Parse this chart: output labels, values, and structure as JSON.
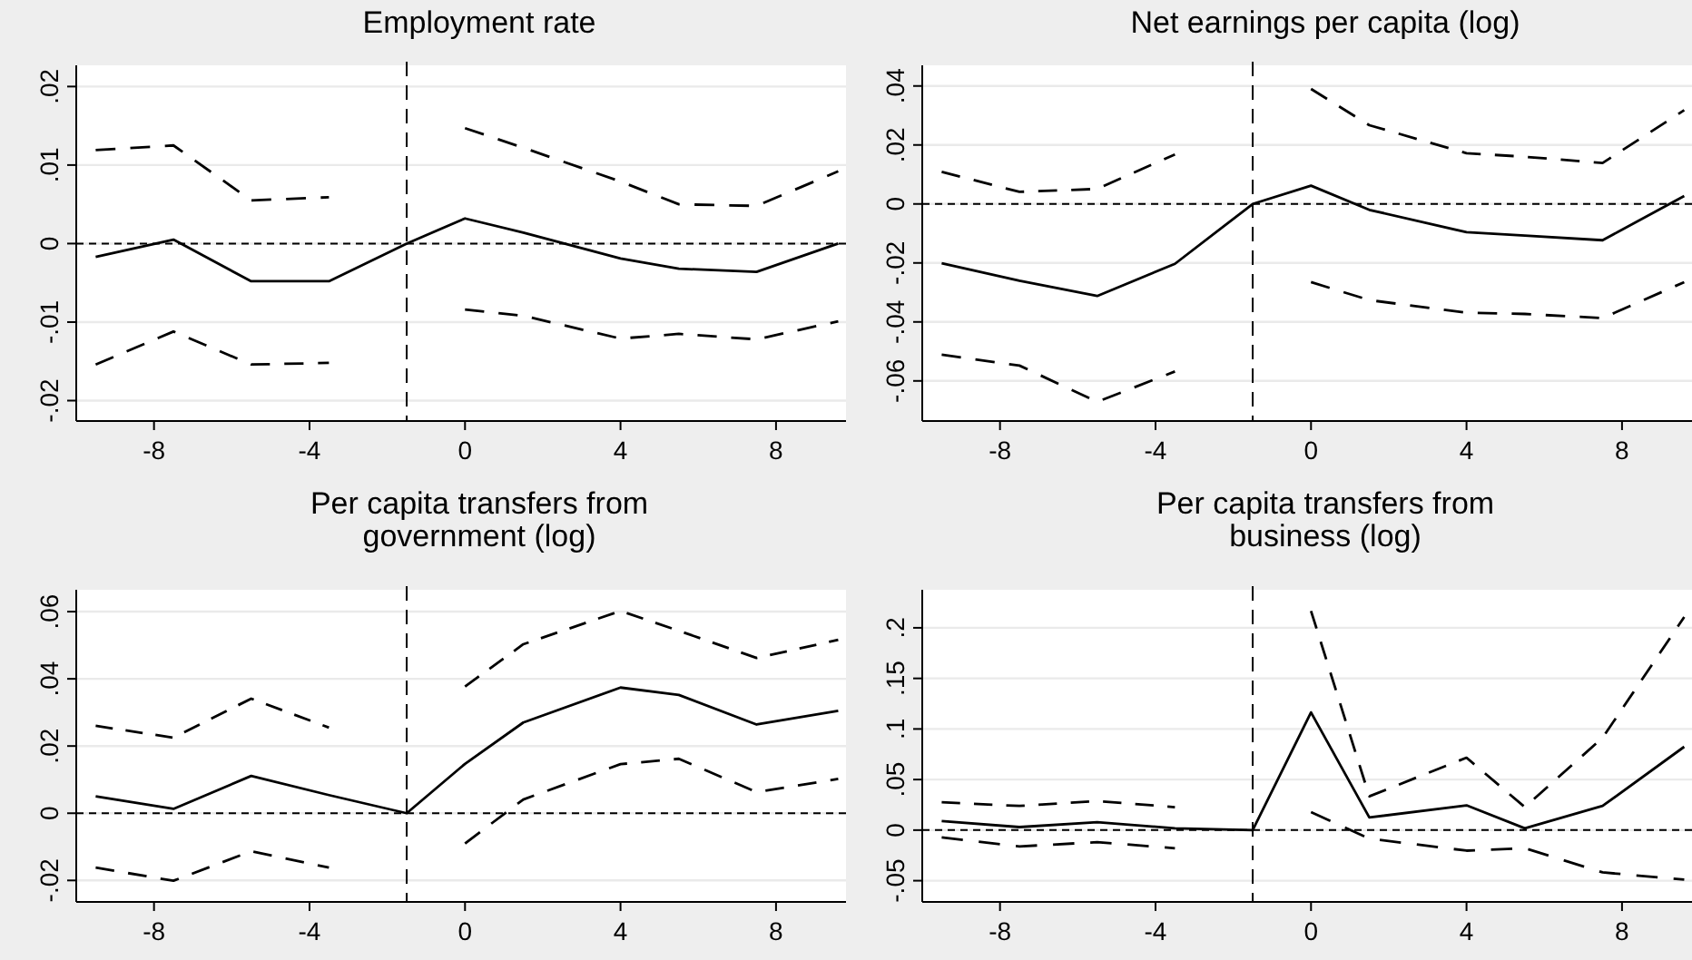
{
  "chart_data": [
    {
      "type": "line",
      "title": "Employment rate",
      "x": [
        -9.5,
        -7.5,
        -5.5,
        -3.5,
        -1.5,
        0,
        1.5,
        4,
        5.5,
        7.5,
        9.6
      ],
      "xlim": [
        -10,
        9.8
      ],
      "xticks": [
        -8,
        -4,
        0,
        4,
        8
      ],
      "ylim": [
        -0.0226,
        0.0227
      ],
      "yticks": [
        {
          "value": -0.02,
          "label": "-.02"
        },
        {
          "value": -0.01,
          "label": "-.01"
        },
        {
          "value": 0,
          "label": "0"
        },
        {
          "value": 0.01,
          "label": ".01"
        },
        {
          "value": 0.02,
          "label": ".02"
        }
      ],
      "grid": "y",
      "ref_lines": [
        {
          "axis": "x",
          "value": -1.5,
          "line_style": "dashed"
        },
        {
          "axis": "y",
          "value": 0,
          "line_style": "dashed"
        }
      ],
      "series": [
        {
          "color": "#000000",
          "line_style": "solid",
          "values": [
            -0.0017,
            0.0005,
            -0.0048,
            -0.0048,
            0,
            0.0032,
            0.0014,
            -0.0019,
            -0.0032,
            -0.0036,
            0
          ]
        },
        {
          "color": "#000000",
          "line_style": "dashed",
          "values": [
            0.0119,
            0.0125,
            0.0055,
            0.0059,
            null,
            0.0147,
            0.0122,
            0.0079,
            0.005,
            0.0048,
            0.0092
          ]
        },
        {
          "color": "#000000",
          "line_style": "dashed",
          "values": [
            -0.0154,
            -0.0112,
            -0.0154,
            -0.0152,
            null,
            -0.0084,
            -0.0092,
            -0.0121,
            -0.0115,
            -0.0122,
            -0.0099
          ]
        }
      ]
    },
    {
      "type": "line",
      "title": "Net earnings per capita (log)",
      "x": [
        -9.5,
        -7.5,
        -5.5,
        -3.5,
        -1.5,
        0,
        1.5,
        4,
        5.5,
        7.5,
        9.6
      ],
      "xlim": [
        -10,
        9.8
      ],
      "xticks": [
        -8,
        -4,
        0,
        4,
        8
      ],
      "ylim": [
        -0.0736,
        0.047
      ],
      "yticks": [
        {
          "value": -0.06,
          "label": "-.06"
        },
        {
          "value": -0.04,
          "label": "-.04"
        },
        {
          "value": -0.02,
          "label": "-.02"
        },
        {
          "value": 0,
          "label": "0"
        },
        {
          "value": 0.02,
          "label": ".02"
        },
        {
          "value": 0.04,
          "label": ".04"
        }
      ],
      "grid": "y",
      "ref_lines": [
        {
          "axis": "x",
          "value": -1.5,
          "line_style": "dashed"
        },
        {
          "axis": "y",
          "value": 0,
          "line_style": "dashed"
        }
      ],
      "series": [
        {
          "color": "#000000",
          "line_style": "solid",
          "values": [
            -0.0201,
            -0.026,
            -0.0312,
            -0.0203,
            0,
            0.0062,
            -0.002,
            -0.0096,
            -0.0107,
            -0.0123,
            0.0027
          ]
        },
        {
          "color": "#000000",
          "line_style": "dashed",
          "values": [
            0.0109,
            0.0041,
            0.0051,
            0.0168,
            null,
            0.039,
            0.0267,
            0.0172,
            0.016,
            0.0139,
            0.0318
          ]
        },
        {
          "color": "#000000",
          "line_style": "dashed",
          "values": [
            -0.0511,
            -0.0548,
            -0.0671,
            -0.0568,
            null,
            -0.0265,
            -0.0326,
            -0.0369,
            -0.0373,
            -0.0387,
            -0.0265
          ]
        }
      ]
    },
    {
      "type": "line",
      "title": "Per capita transfers from government (log)",
      "x": [
        -9.5,
        -7.5,
        -5.5,
        -3.5,
        -1.5,
        0,
        1.5,
        4,
        5.5,
        7.5,
        9.6
      ],
      "xlim": [
        -10,
        9.8
      ],
      "xticks": [
        -8,
        -4,
        0,
        4,
        8
      ],
      "ylim": [
        -0.0264,
        0.0665
      ],
      "yticks": [
        {
          "value": -0.02,
          "label": "-.02"
        },
        {
          "value": 0,
          "label": "0"
        },
        {
          "value": 0.02,
          "label": ".02"
        },
        {
          "value": 0.04,
          "label": ".04"
        },
        {
          "value": 0.06,
          "label": ".06"
        }
      ],
      "grid": "y",
      "ref_lines": [
        {
          "axis": "x",
          "value": -1.5,
          "line_style": "dashed"
        },
        {
          "axis": "y",
          "value": 0,
          "line_style": "dashed"
        }
      ],
      "series": [
        {
          "color": "#000000",
          "line_style": "solid",
          "values": [
            0.005,
            0.0013,
            0.0111,
            0.0054,
            0,
            0.0147,
            0.027,
            0.0374,
            0.0352,
            0.0264,
            0.0305
          ]
        },
        {
          "color": "#000000",
          "line_style": "dashed",
          "values": [
            0.026,
            0.0225,
            0.0341,
            0.0255,
            null,
            0.0377,
            0.0503,
            0.0602,
            0.0543,
            0.0462,
            0.0516
          ]
        },
        {
          "color": "#000000",
          "line_style": "dashed",
          "values": [
            -0.0162,
            -0.0201,
            -0.0113,
            -0.0162,
            null,
            -0.009,
            0.0041,
            0.0146,
            0.0162,
            0.0063,
            0.0102
          ]
        }
      ]
    },
    {
      "type": "line",
      "title": "Per capita transfers from business (log)",
      "x": [
        -9.5,
        -7.5,
        -5.5,
        -3.5,
        -1.5,
        0,
        1.5,
        4,
        5.5,
        7.5,
        9.6
      ],
      "xlim": [
        -10,
        9.8
      ],
      "xticks": [
        -8,
        -4,
        0,
        4,
        8
      ],
      "ylim": [
        -0.071,
        0.2376
      ],
      "yticks": [
        {
          "value": -0.05,
          "label": "-.05"
        },
        {
          "value": 0,
          "label": "0"
        },
        {
          "value": 0.05,
          "label": ".05"
        },
        {
          "value": 0.1,
          "label": ".1"
        },
        {
          "value": 0.15,
          "label": ".15"
        },
        {
          "value": 0.2,
          "label": ".2"
        }
      ],
      "grid": "y",
      "ref_lines": [
        {
          "axis": "x",
          "value": -1.5,
          "line_style": "dashed"
        },
        {
          "axis": "y",
          "value": 0,
          "line_style": "dashed"
        }
      ],
      "series": [
        {
          "color": "#000000",
          "line_style": "solid",
          "values": [
            0.009,
            0.003,
            0.0078,
            0.0018,
            0,
            0.1164,
            0.0125,
            0.0245,
            0.0018,
            0.0239,
            0.0824
          ]
        },
        {
          "color": "#000000",
          "line_style": "dashed",
          "values": [
            0.0275,
            0.0239,
            0.0287,
            0.0227,
            null,
            0.2167,
            0.0334,
            0.0716,
            0.0227,
            0.0913,
            0.2107
          ]
        },
        {
          "color": "#000000",
          "line_style": "dashed",
          "values": [
            -0.0072,
            -0.0161,
            -0.0119,
            -0.0179,
            null,
            0.0179,
            -0.0084,
            -0.0203,
            -0.0179,
            -0.0418,
            -0.049
          ]
        }
      ]
    }
  ]
}
